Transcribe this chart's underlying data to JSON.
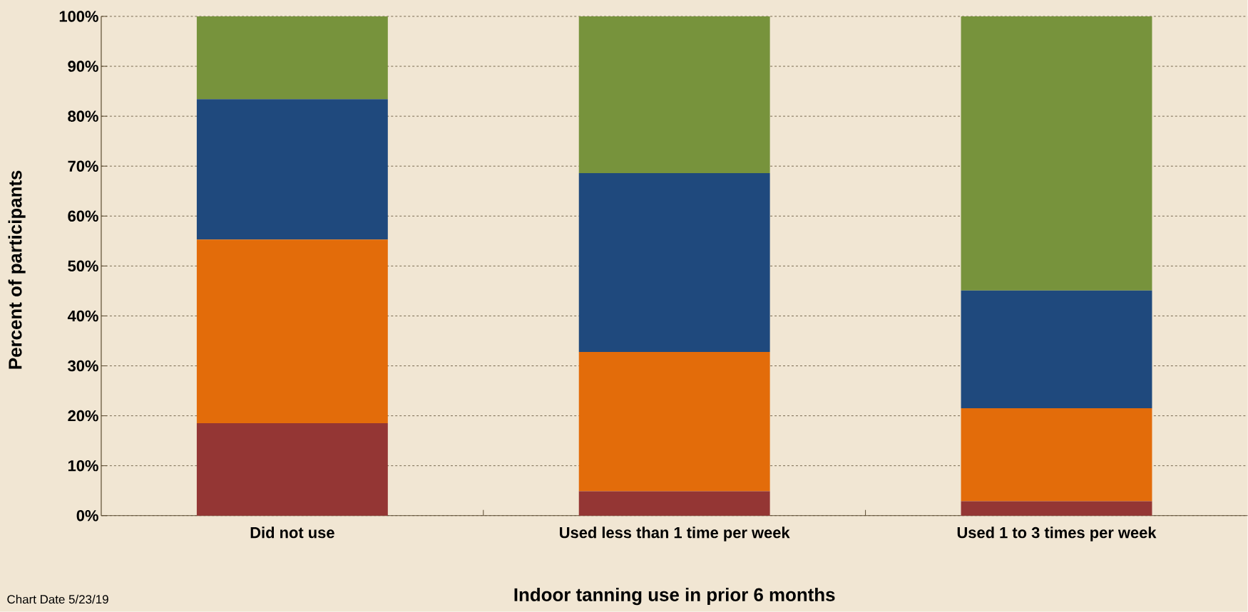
{
  "chart_data": {
    "type": "bar",
    "stacked": true,
    "xlabel": "Indoor tanning use in prior 6 months",
    "ylabel": "Percent of participants",
    "categories": [
      "Did not use",
      "Used less than 1 time per week",
      "Used 1 to 3 times per week"
    ],
    "series": [
      {
        "color": "#943634",
        "values": [
          18.5,
          4.9,
          2.9
        ]
      },
      {
        "color": "#e36c0a",
        "values": [
          36.8,
          27.9,
          18.6
        ]
      },
      {
        "color": "#1f497d",
        "values": [
          28.1,
          35.8,
          23.6
        ]
      },
      {
        "color": "#77933c",
        "values": [
          16.6,
          31.4,
          54.9
        ]
      }
    ],
    "ylim": [
      0,
      100
    ],
    "yticks": [
      {
        "value": 0,
        "label": "0%"
      },
      {
        "value": 10,
        "label": "10%"
      },
      {
        "value": 20,
        "label": "20%"
      },
      {
        "value": 30,
        "label": "30%"
      },
      {
        "value": 40,
        "label": "40%"
      },
      {
        "value": 50,
        "label": "50%"
      },
      {
        "value": 60,
        "label": "60%"
      },
      {
        "value": 70,
        "label": "70%"
      },
      {
        "value": 80,
        "label": "80%"
      },
      {
        "value": 90,
        "label": "90%"
      },
      {
        "value": 100,
        "label": "100%"
      }
    ],
    "grid": "y",
    "annotations": [
      "Chart Date 5/23/19"
    ]
  }
}
